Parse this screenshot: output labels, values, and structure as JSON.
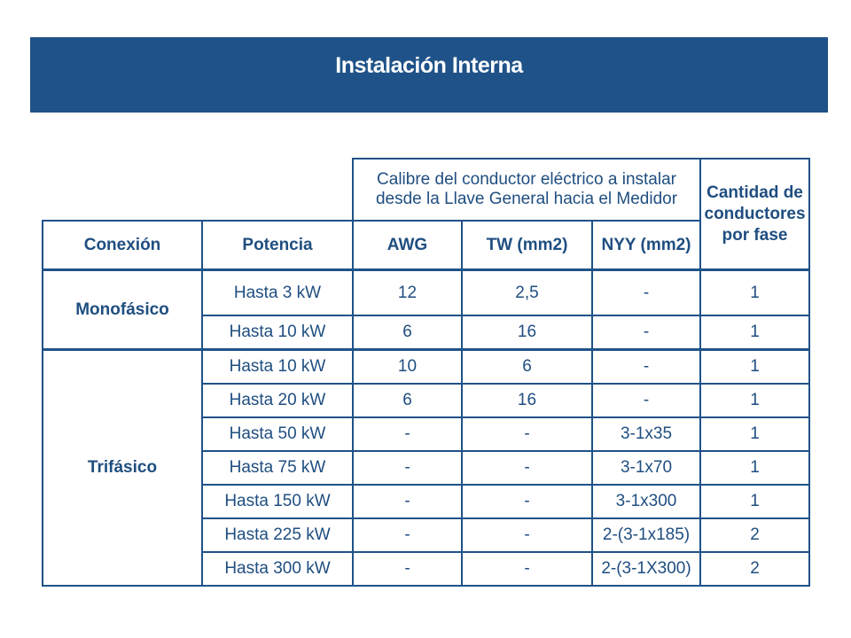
{
  "slide": {
    "title": "Instalación Interna"
  },
  "table": {
    "group_header": "Calibre del conductor eléctrico a instalar desde la Llave General hacia el Medidor",
    "quantity_header": "Cantidad de conductores por fase",
    "columns": {
      "conexion": "Conexión",
      "potencia": "Potencia",
      "awg": "AWG",
      "tw": "TW (mm2)",
      "nyy": "NYY (mm2)"
    },
    "groups": [
      {
        "conexion": "Monofásico",
        "rows": [
          {
            "potencia": "Hasta 3 kW",
            "awg": "12",
            "tw": "2,5",
            "nyy": "-",
            "cantidad": "1"
          },
          {
            "potencia": "Hasta 10 kW",
            "awg": "6",
            "tw": "16",
            "nyy": "-",
            "cantidad": "1"
          }
        ]
      },
      {
        "conexion": "Trifásico",
        "rows": [
          {
            "potencia": "Hasta 10 kW",
            "awg": "10",
            "tw": "6",
            "nyy": "-",
            "cantidad": "1"
          },
          {
            "potencia": "Hasta 20 kW",
            "awg": "6",
            "tw": "16",
            "nyy": "-",
            "cantidad": "1"
          },
          {
            "potencia": "Hasta 50 kW",
            "awg": "-",
            "tw": "-",
            "nyy": "3-1x35",
            "cantidad": "1"
          },
          {
            "potencia": "Hasta 75 kW",
            "awg": "-",
            "tw": "-",
            "nyy": "3-1x70",
            "cantidad": "1"
          },
          {
            "potencia": "Hasta 150 kW",
            "awg": "-",
            "tw": "-",
            "nyy": "3-1x300",
            "cantidad": "1"
          },
          {
            "potencia": "Hasta 225 kW",
            "awg": "-",
            "tw": "-",
            "nyy": "2-(3-1x185)",
            "cantidad": "2"
          },
          {
            "potencia": "Hasta 300 kW",
            "awg": "-",
            "tw": "-",
            "nyy": "2-(3-1X300)",
            "cantidad": "2"
          }
        ]
      }
    ]
  },
  "colors": {
    "banner": "#1f5288",
    "text": "#1f4e80",
    "border": "#1f5288"
  }
}
